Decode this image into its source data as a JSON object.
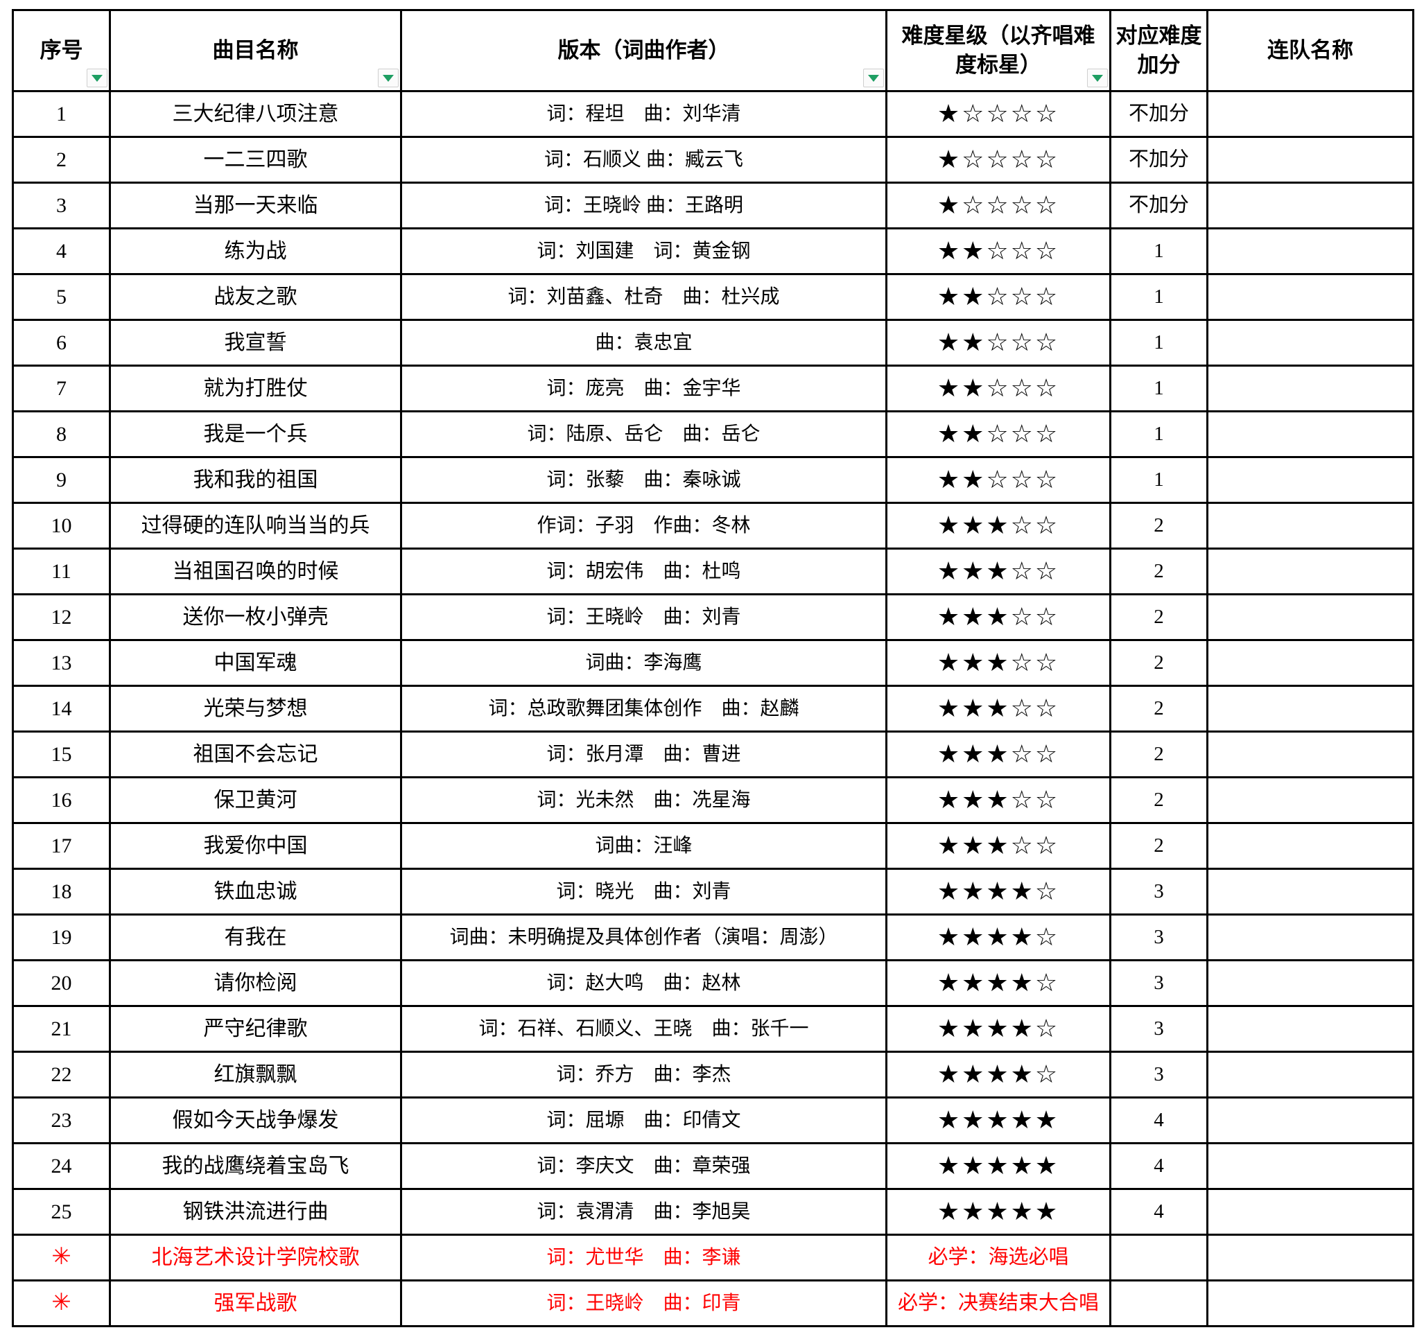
{
  "table": {
    "colors": {
      "special_text": "#FF0000",
      "filter_arrow": "#1E9E62",
      "border": "#000000"
    },
    "columns": [
      {
        "label": "序号",
        "has_filter": true
      },
      {
        "label": "曲目名称",
        "has_filter": true
      },
      {
        "label": "版本（词曲作者）",
        "has_filter": true
      },
      {
        "label": "难度星级（以齐唱难度标星）",
        "has_filter": true
      },
      {
        "label": "对应难度加分",
        "has_filter": false
      },
      {
        "label": "连队名称",
        "has_filter": false
      }
    ],
    "rows": [
      {
        "no": "1",
        "title": "三大纪律八项注意",
        "version": "词：程坦　曲：刘华清",
        "difficulty": "★☆☆☆☆",
        "bonus": "不加分",
        "company": "",
        "special": false
      },
      {
        "no": "2",
        "title": "一二三四歌",
        "version": "词：石顺义 曲：臧云飞",
        "difficulty": "★☆☆☆☆",
        "bonus": "不加分",
        "company": "",
        "special": false
      },
      {
        "no": "3",
        "title": "当那一天来临",
        "version": "词：王晓岭 曲：王路明",
        "difficulty": "★☆☆☆☆",
        "bonus": "不加分",
        "company": "",
        "special": false
      },
      {
        "no": "4",
        "title": "练为战",
        "version": "词：刘国建　词：黄金钢",
        "difficulty": "★★☆☆☆",
        "bonus": "1",
        "company": "",
        "special": false
      },
      {
        "no": "5",
        "title": "战友之歌",
        "version": "词：刘苗鑫、杜奇　曲：杜兴成",
        "difficulty": "★★☆☆☆",
        "bonus": "1",
        "company": "",
        "special": false
      },
      {
        "no": "6",
        "title": "我宣誓",
        "version": "曲：袁忠宜",
        "difficulty": "★★☆☆☆",
        "bonus": "1",
        "company": "",
        "special": false
      },
      {
        "no": "7",
        "title": "就为打胜仗",
        "version": "词：庞亮　曲：金宇华",
        "difficulty": "★★☆☆☆",
        "bonus": "1",
        "company": "",
        "special": false
      },
      {
        "no": "8",
        "title": "我是一个兵",
        "version": "词：陆原、岳仑　曲：岳仑",
        "difficulty": "★★☆☆☆",
        "bonus": "1",
        "company": "",
        "special": false
      },
      {
        "no": "9",
        "title": "我和我的祖国",
        "version": "词：张藜　曲：秦咏诚",
        "difficulty": "★★☆☆☆",
        "bonus": "1",
        "company": "",
        "special": false
      },
      {
        "no": "10",
        "title": "过得硬的连队响当当的兵",
        "version": "作词：子羽　作曲：冬林",
        "difficulty": "★★★☆☆",
        "bonus": "2",
        "company": "",
        "special": false
      },
      {
        "no": "11",
        "title": "当祖国召唤的时候",
        "version": "词：胡宏伟　曲：杜鸣",
        "difficulty": "★★★☆☆",
        "bonus": "2",
        "company": "",
        "special": false
      },
      {
        "no": "12",
        "title": "送你一枚小弹壳",
        "version": "词：王晓岭　曲：刘青",
        "difficulty": "★★★☆☆",
        "bonus": "2",
        "company": "",
        "special": false
      },
      {
        "no": "13",
        "title": "中国军魂",
        "version": "词曲：李海鹰",
        "difficulty": "★★★☆☆",
        "bonus": "2",
        "company": "",
        "special": false
      },
      {
        "no": "14",
        "title": "光荣与梦想",
        "version": "词：总政歌舞团集体创作　曲：赵麟",
        "difficulty": "★★★☆☆",
        "bonus": "2",
        "company": "",
        "special": false
      },
      {
        "no": "15",
        "title": "祖国不会忘记",
        "version": "词：张月潭　曲：曹进",
        "difficulty": "★★★☆☆",
        "bonus": "2",
        "company": "",
        "special": false
      },
      {
        "no": "16",
        "title": "保卫黄河",
        "version": "词：光未然　曲：冼星海",
        "difficulty": "★★★☆☆",
        "bonus": "2",
        "company": "",
        "special": false
      },
      {
        "no": "17",
        "title": "我爱你中国",
        "version": "词曲：汪峰",
        "difficulty": "★★★☆☆",
        "bonus": "2",
        "company": "",
        "special": false
      },
      {
        "no": "18",
        "title": "铁血忠诚",
        "version": "词：晓光　曲：刘青",
        "difficulty": "★★★★☆",
        "bonus": "3",
        "company": "",
        "special": false
      },
      {
        "no": "19",
        "title": "有我在",
        "version": "词曲：未明确提及具体创作者（演唱：周澎）",
        "difficulty": "★★★★☆",
        "bonus": "3",
        "company": "",
        "special": false
      },
      {
        "no": "20",
        "title": "请你检阅",
        "version": "词：赵大鸣　曲：赵林",
        "difficulty": "★★★★☆",
        "bonus": "3",
        "company": "",
        "special": false
      },
      {
        "no": "21",
        "title": "严守纪律歌",
        "version": "词：石祥、石顺义、王晓　曲：张千一",
        "difficulty": "★★★★☆",
        "bonus": "3",
        "company": "",
        "special": false
      },
      {
        "no": "22",
        "title": "红旗飘飘",
        "version": "词：乔方　曲：李杰",
        "difficulty": "★★★★☆",
        "bonus": "3",
        "company": "",
        "special": false
      },
      {
        "no": "23",
        "title": "假如今天战争爆发",
        "version": "词：屈塬　曲：印倩文",
        "difficulty": "★★★★★",
        "bonus": "4",
        "company": "",
        "special": false
      },
      {
        "no": "24",
        "title": "我的战鹰绕着宝岛飞",
        "version": "词：李庆文　曲：章荣强",
        "difficulty": "★★★★★",
        "bonus": "4",
        "company": "",
        "special": false
      },
      {
        "no": "25",
        "title": "钢铁洪流进行曲",
        "version": "词：袁渭清　曲：李旭昊",
        "difficulty": "★★★★★",
        "bonus": "4",
        "company": "",
        "special": false
      },
      {
        "no": "✳",
        "title": "北海艺术设计学院校歌",
        "version": "词：尤世华　曲：李谦",
        "difficulty": "必学：海选必唱",
        "bonus": "",
        "company": "",
        "special": true
      },
      {
        "no": "✳",
        "title": "强军战歌",
        "version": "词：王晓岭　曲：印青",
        "difficulty": "必学：决赛结束大合唱",
        "bonus": "",
        "company": "",
        "special": true
      }
    ]
  }
}
